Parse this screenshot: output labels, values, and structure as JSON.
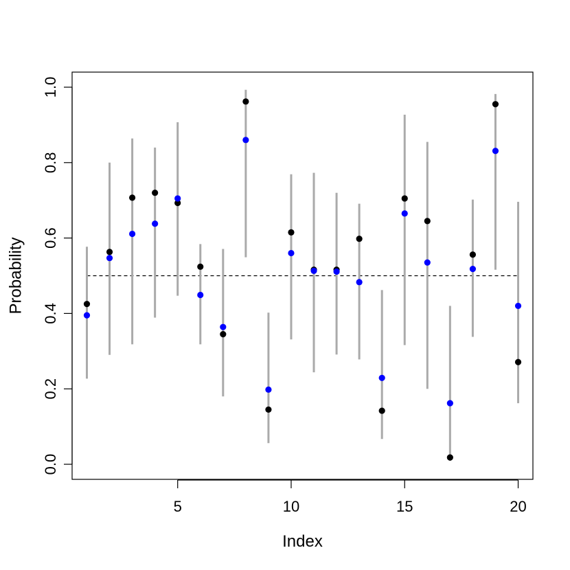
{
  "chart_data": {
    "type": "scatter",
    "title": "",
    "xlabel": "Index",
    "ylabel": "Probability",
    "xlim": [
      0.35,
      20.65
    ],
    "ylim": [
      -0.04,
      1.04
    ],
    "x_ticks": [
      5,
      10,
      15,
      20
    ],
    "y_ticks": [
      0.0,
      0.2,
      0.4,
      0.6,
      0.8,
      1.0
    ],
    "x_tick_labels": [
      "5",
      "10",
      "15",
      "20"
    ],
    "y_tick_labels": [
      "0.0",
      "0.2",
      "0.4",
      "0.6",
      "0.8",
      "1.0"
    ],
    "grid": false,
    "reference_line": {
      "y": 0.5,
      "x_from": 1,
      "x_to": 20,
      "style": "dashed",
      "color": "#000000"
    },
    "colors": {
      "interval": "#aaaaaa",
      "black_points": "#000000",
      "blue_points": "#0000ff"
    },
    "x": [
      1,
      2,
      3,
      4,
      5,
      6,
      7,
      8,
      9,
      10,
      11,
      12,
      13,
      14,
      15,
      16,
      17,
      18,
      19,
      20
    ],
    "intervals": [
      [
        0.227,
        0.577
      ],
      [
        0.29,
        0.8
      ],
      [
        0.318,
        0.864
      ],
      [
        0.389,
        0.84
      ],
      [
        0.447,
        0.907
      ],
      [
        0.318,
        0.584
      ],
      [
        0.18,
        0.571
      ],
      [
        0.549,
        0.993
      ],
      [
        0.056,
        0.402
      ],
      [
        0.331,
        0.769
      ],
      [
        0.244,
        0.773
      ],
      [
        0.291,
        0.72
      ],
      [
        0.278,
        0.691
      ],
      [
        0.067,
        0.462
      ],
      [
        0.316,
        0.927
      ],
      [
        0.2,
        0.855
      ],
      [
        0.009,
        0.42
      ],
      [
        0.338,
        0.702
      ],
      [
        0.516,
        0.982
      ],
      [
        0.162,
        0.696
      ]
    ],
    "series": [
      {
        "values": [
          0.425,
          0.563,
          0.707,
          0.72,
          0.693,
          0.524,
          0.345,
          0.962,
          0.145,
          0.615,
          0.516,
          0.516,
          0.598,
          0.142,
          0.705,
          0.645,
          0.018,
          0.556,
          0.955,
          0.271
        ],
        "color": "#000000"
      },
      {
        "values": [
          0.395,
          0.547,
          0.611,
          0.638,
          0.705,
          0.449,
          0.364,
          0.86,
          0.198,
          0.56,
          0.513,
          0.511,
          0.483,
          0.229,
          0.665,
          0.535,
          0.162,
          0.518,
          0.831,
          0.42
        ],
        "color": "#0000ff"
      }
    ]
  }
}
